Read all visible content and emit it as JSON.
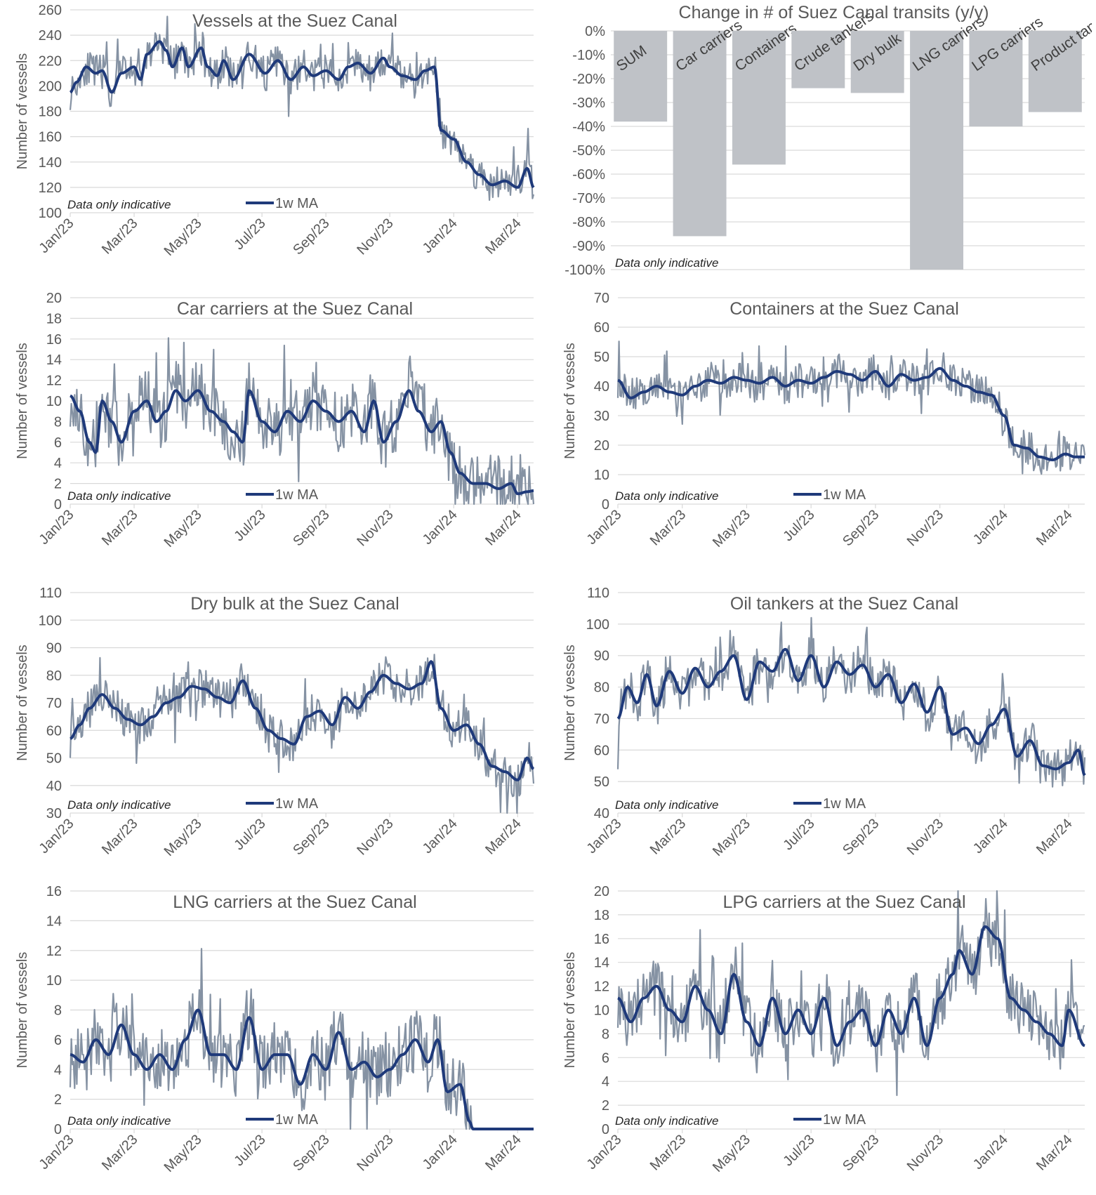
{
  "colors": {
    "daily": "#8592a3",
    "ma": "#1f3a7a",
    "bar": "#bfc2c7",
    "grid": "#d9d9d9",
    "text": "#595959"
  },
  "charts": [
    {
      "id": "vessels",
      "type": "line",
      "title": "Vessels at the Suez Canal",
      "ylabel": "Number of vessels",
      "note": "Data only indicative",
      "legend": "1w MA",
      "ylim": [
        100,
        260
      ],
      "ystep": 20,
      "xticks": [
        "Jan/23",
        "Mar/23",
        "May/23",
        "Jul/23",
        "Sep/23",
        "Nov/23",
        "Jan/24",
        "Mar/24"
      ],
      "ma_nodes": [
        [
          0,
          195
        ],
        [
          0.2,
          203
        ],
        [
          0.5,
          215
        ],
        [
          0.8,
          210
        ],
        [
          1.0,
          212
        ],
        [
          1.3,
          195
        ],
        [
          1.6,
          210
        ],
        [
          2.0,
          215
        ],
        [
          2.2,
          205
        ],
        [
          2.4,
          225
        ],
        [
          2.8,
          235
        ],
        [
          3.0,
          228
        ],
        [
          3.2,
          215
        ],
        [
          3.5,
          230
        ],
        [
          3.7,
          215
        ],
        [
          4.1,
          230
        ],
        [
          4.3,
          215
        ],
        [
          4.6,
          208
        ],
        [
          4.8,
          220
        ],
        [
          5.1,
          205
        ],
        [
          5.6,
          225
        ],
        [
          6.1,
          210
        ],
        [
          6.5,
          220
        ],
        [
          6.9,
          205
        ],
        [
          7.3,
          215
        ],
        [
          7.6,
          208
        ],
        [
          8.0,
          212
        ],
        [
          8.4,
          205
        ],
        [
          8.7,
          215
        ],
        [
          9.0,
          218
        ],
        [
          9.4,
          210
        ],
        [
          9.8,
          222
        ],
        [
          10.0,
          215
        ],
        [
          10.4,
          208
        ],
        [
          10.8,
          205
        ],
        [
          11.1,
          212
        ],
        [
          11.4,
          215
        ],
        [
          11.6,
          165
        ],
        [
          12.0,
          158
        ],
        [
          12.4,
          140
        ],
        [
          12.8,
          130
        ],
        [
          13.2,
          122
        ],
        [
          13.6,
          125
        ],
        [
          14.0,
          120
        ],
        [
          14.3,
          135
        ],
        [
          14.5,
          120
        ]
      ],
      "daily_amp": 14,
      "xmax": 14.5,
      "seed": 11
    },
    {
      "id": "car-carriers",
      "type": "line",
      "title": "Car carriers at the Suez Canal",
      "ylabel": "Number of vessels",
      "note": "Data only indicative",
      "legend": "1w MA",
      "ylim": [
        0,
        20
      ],
      "ystep": 2,
      "xticks": [
        "Jan/23",
        "Mar/23",
        "May/23",
        "Jul/23",
        "Sep/23",
        "Nov/23",
        "Jan/24",
        "Mar/24"
      ],
      "ma_nodes": [
        [
          0,
          10.5
        ],
        [
          0.3,
          9
        ],
        [
          0.6,
          6
        ],
        [
          0.8,
          5
        ],
        [
          1.0,
          10
        ],
        [
          1.3,
          8
        ],
        [
          1.6,
          6
        ],
        [
          2.0,
          9
        ],
        [
          2.4,
          10
        ],
        [
          2.7,
          8
        ],
        [
          3.0,
          9
        ],
        [
          3.3,
          11
        ],
        [
          3.6,
          10
        ],
        [
          4.0,
          11
        ],
        [
          4.4,
          9
        ],
        [
          4.8,
          8
        ],
        [
          5.1,
          7
        ],
        [
          5.4,
          6
        ],
        [
          5.6,
          11
        ],
        [
          6.0,
          8
        ],
        [
          6.4,
          7
        ],
        [
          6.8,
          9
        ],
        [
          7.2,
          8
        ],
        [
          7.6,
          10
        ],
        [
          8.0,
          9
        ],
        [
          8.4,
          8
        ],
        [
          8.8,
          9
        ],
        [
          9.2,
          7
        ],
        [
          9.5,
          10
        ],
        [
          9.8,
          6
        ],
        [
          10.2,
          8
        ],
        [
          10.6,
          11
        ],
        [
          10.9,
          9
        ],
        [
          11.3,
          7
        ],
        [
          11.6,
          8
        ],
        [
          11.9,
          5
        ],
        [
          12.2,
          3
        ],
        [
          12.6,
          2
        ],
        [
          13.0,
          2
        ],
        [
          13.4,
          1.5
        ],
        [
          13.8,
          2
        ],
        [
          14.0,
          1
        ],
        [
          14.3,
          1.2
        ],
        [
          14.5,
          1.3
        ]
      ],
      "daily_amp": 3,
      "xmax": 14.5,
      "seed": 23
    },
    {
      "id": "containers",
      "type": "line",
      "title": "Containers at the Suez Canal",
      "ylabel": "Number of vessels",
      "note": "Data only indicative",
      "legend": "1w MA",
      "ylim": [
        0,
        70
      ],
      "ystep": 10,
      "xticks": [
        "Jan/23",
        "Mar/23",
        "May/23",
        "Jul/23",
        "Sep/23",
        "Nov/23",
        "Jan/24",
        "Mar/24"
      ],
      "ma_nodes": [
        [
          0,
          42
        ],
        [
          0.4,
          36
        ],
        [
          0.8,
          38
        ],
        [
          1.2,
          40
        ],
        [
          1.6,
          38
        ],
        [
          2.0,
          37
        ],
        [
          2.4,
          40
        ],
        [
          2.8,
          42
        ],
        [
          3.2,
          41
        ],
        [
          3.6,
          43
        ],
        [
          4.0,
          42
        ],
        [
          4.4,
          41
        ],
        [
          4.8,
          43
        ],
        [
          5.2,
          40
        ],
        [
          5.6,
          42
        ],
        [
          6.0,
          41
        ],
        [
          6.4,
          43
        ],
        [
          6.8,
          45
        ],
        [
          7.2,
          44
        ],
        [
          7.6,
          42
        ],
        [
          8.0,
          45
        ],
        [
          8.4,
          40
        ],
        [
          8.8,
          44
        ],
        [
          9.2,
          42
        ],
        [
          9.6,
          43
        ],
        [
          10.0,
          46
        ],
        [
          10.4,
          42
        ],
        [
          10.8,
          40
        ],
        [
          11.2,
          38
        ],
        [
          11.6,
          37
        ],
        [
          12.0,
          30
        ],
        [
          12.3,
          20
        ],
        [
          12.7,
          19
        ],
        [
          13.1,
          16
        ],
        [
          13.5,
          15
        ],
        [
          13.9,
          17
        ],
        [
          14.2,
          16
        ],
        [
          14.5,
          16
        ]
      ],
      "daily_amp": 6,
      "xmax": 14.5,
      "seed": 37
    },
    {
      "id": "dry-bulk",
      "type": "line",
      "title": "Dry bulk at the Suez Canal",
      "ylabel": "Number of vessels",
      "note": "Data only indicative",
      "legend": "1w MA",
      "ylim": [
        30,
        110
      ],
      "ystep": 10,
      "xticks": [
        "Jan/23",
        "Mar/23",
        "May/23",
        "Jul/23",
        "Sep/23",
        "Nov/23",
        "Jan/24",
        "Mar/24"
      ],
      "ma_nodes": [
        [
          0,
          57
        ],
        [
          0.3,
          62
        ],
        [
          0.6,
          68
        ],
        [
          1.0,
          73
        ],
        [
          1.4,
          68
        ],
        [
          1.8,
          64
        ],
        [
          2.2,
          62
        ],
        [
          2.6,
          65
        ],
        [
          3.0,
          70
        ],
        [
          3.4,
          72
        ],
        [
          3.8,
          76
        ],
        [
          4.2,
          75
        ],
        [
          4.6,
          72
        ],
        [
          5.0,
          70
        ],
        [
          5.4,
          78
        ],
        [
          5.8,
          68
        ],
        [
          6.2,
          60
        ],
        [
          6.6,
          57
        ],
        [
          7.0,
          55
        ],
        [
          7.4,
          65
        ],
        [
          7.8,
          67
        ],
        [
          8.2,
          62
        ],
        [
          8.6,
          72
        ],
        [
          9.0,
          68
        ],
        [
          9.4,
          74
        ],
        [
          9.8,
          80
        ],
        [
          10.2,
          77
        ],
        [
          10.6,
          75
        ],
        [
          11.0,
          77
        ],
        [
          11.3,
          85
        ],
        [
          11.6,
          68
        ],
        [
          12.0,
          60
        ],
        [
          12.4,
          62
        ],
        [
          12.8,
          55
        ],
        [
          13.2,
          47
        ],
        [
          13.6,
          45
        ],
        [
          14.0,
          42
        ],
        [
          14.3,
          50
        ],
        [
          14.5,
          46
        ]
      ],
      "daily_amp": 7,
      "xmax": 14.5,
      "seed": 41
    },
    {
      "id": "oil-tankers",
      "type": "line",
      "title": "Oil tankers at the Suez Canal",
      "ylabel": "Number of vessels",
      "note": "Data only indicative",
      "legend": "1w MA",
      "ylim": [
        40,
        110
      ],
      "ystep": 10,
      "xticks": [
        "Jan/23",
        "Mar/23",
        "May/23",
        "Jul/23",
        "Sep/23",
        "Nov/23",
        "Jan/24",
        "Mar/24"
      ],
      "ma_nodes": [
        [
          0,
          70
        ],
        [
          0.3,
          80
        ],
        [
          0.6,
          75
        ],
        [
          0.9,
          84
        ],
        [
          1.2,
          74
        ],
        [
          1.6,
          85
        ],
        [
          2.0,
          78
        ],
        [
          2.4,
          86
        ],
        [
          2.8,
          80
        ],
        [
          3.2,
          85
        ],
        [
          3.6,
          90
        ],
        [
          4.0,
          76
        ],
        [
          4.4,
          88
        ],
        [
          4.8,
          85
        ],
        [
          5.2,
          92
        ],
        [
          5.6,
          82
        ],
        [
          6.0,
          90
        ],
        [
          6.4,
          80
        ],
        [
          6.8,
          88
        ],
        [
          7.2,
          84
        ],
        [
          7.6,
          87
        ],
        [
          8.0,
          80
        ],
        [
          8.4,
          84
        ],
        [
          8.8,
          75
        ],
        [
          9.2,
          81
        ],
        [
          9.6,
          72
        ],
        [
          10.0,
          80
        ],
        [
          10.4,
          65
        ],
        [
          10.8,
          67
        ],
        [
          11.2,
          62
        ],
        [
          11.6,
          68
        ],
        [
          12.0,
          73
        ],
        [
          12.4,
          58
        ],
        [
          12.8,
          63
        ],
        [
          13.2,
          55
        ],
        [
          13.6,
          54
        ],
        [
          14.0,
          56
        ],
        [
          14.3,
          60
        ],
        [
          14.5,
          52
        ]
      ],
      "daily_amp": 7,
      "xmax": 14.5,
      "seed": 53
    },
    {
      "id": "lng-carriers",
      "type": "line",
      "title": "LNG carriers at the Suez Canal",
      "ylabel": "Number of vessels",
      "note": "Data only indicative",
      "legend": "1w MA",
      "ylim": [
        0,
        16
      ],
      "ystep": 2,
      "xticks": [
        "Jan/23",
        "Mar/23",
        "May/23",
        "Jul/23",
        "Sep/23",
        "Nov/23",
        "Jan/24",
        "Mar/24"
      ],
      "ma_nodes": [
        [
          0,
          5
        ],
        [
          0.4,
          4.5
        ],
        [
          0.8,
          6
        ],
        [
          1.2,
          5
        ],
        [
          1.6,
          7
        ],
        [
          2.0,
          5
        ],
        [
          2.4,
          4
        ],
        [
          2.8,
          5
        ],
        [
          3.2,
          4
        ],
        [
          3.6,
          6
        ],
        [
          4.0,
          8
        ],
        [
          4.4,
          5
        ],
        [
          4.8,
          5
        ],
        [
          5.2,
          4
        ],
        [
          5.6,
          7.5
        ],
        [
          6.0,
          4
        ],
        [
          6.4,
          5
        ],
        [
          6.8,
          5
        ],
        [
          7.2,
          3
        ],
        [
          7.6,
          5
        ],
        [
          8.0,
          4
        ],
        [
          8.4,
          6.5
        ],
        [
          8.8,
          4
        ],
        [
          9.2,
          4.5
        ],
        [
          9.6,
          3.5
        ],
        [
          10.0,
          4
        ],
        [
          10.4,
          5
        ],
        [
          10.8,
          6
        ],
        [
          11.2,
          4.5
        ],
        [
          11.5,
          6
        ],
        [
          11.8,
          2.5
        ],
        [
          12.2,
          3
        ],
        [
          12.5,
          0.5
        ],
        [
          12.6,
          0
        ],
        [
          13.5,
          0
        ],
        [
          14.5,
          0
        ]
      ],
      "daily_amp": 2.2,
      "zero_after": 12.6,
      "xmax": 14.5,
      "seed": 61
    },
    {
      "id": "lpg-carriers",
      "type": "line",
      "title": "LPG carriers at the Suez Canal",
      "ylabel": "Number of vessels",
      "note": "Data only indicative",
      "legend": "1w MA",
      "ylim": [
        0,
        20
      ],
      "ystep": 2,
      "xticks": [
        "Jan/23",
        "Mar/23",
        "May/23",
        "Jul/23",
        "Sep/23",
        "Nov/23",
        "Jan/24",
        "Mar/24"
      ],
      "ma_nodes": [
        [
          0,
          11
        ],
        [
          0.4,
          9
        ],
        [
          0.8,
          11
        ],
        [
          1.2,
          12
        ],
        [
          1.6,
          10
        ],
        [
          2.0,
          9
        ],
        [
          2.4,
          12
        ],
        [
          2.8,
          10
        ],
        [
          3.2,
          8
        ],
        [
          3.6,
          13
        ],
        [
          4.0,
          9
        ],
        [
          4.4,
          7
        ],
        [
          4.8,
          11
        ],
        [
          5.2,
          8
        ],
        [
          5.6,
          10
        ],
        [
          6.0,
          8
        ],
        [
          6.4,
          11
        ],
        [
          6.8,
          7
        ],
        [
          7.2,
          9
        ],
        [
          7.6,
          10
        ],
        [
          8.0,
          7
        ],
        [
          8.4,
          10
        ],
        [
          8.8,
          8
        ],
        [
          9.2,
          11
        ],
        [
          9.6,
          7
        ],
        [
          10.0,
          11
        ],
        [
          10.4,
          13
        ],
        [
          10.6,
          15
        ],
        [
          11.0,
          13
        ],
        [
          11.4,
          17
        ],
        [
          11.8,
          16
        ],
        [
          12.2,
          11
        ],
        [
          12.6,
          10
        ],
        [
          13.0,
          9
        ],
        [
          13.4,
          8
        ],
        [
          13.8,
          7
        ],
        [
          14.0,
          10
        ],
        [
          14.5,
          7
        ]
      ],
      "daily_amp": 2.5,
      "xmax": 14.5,
      "seed": 79
    }
  ],
  "bar_chart": {
    "type": "bar",
    "title": "Change in # of Suez Canal transits (y/y)",
    "note": "Data only indicative",
    "categories": [
      "SUM",
      "Car carriers",
      "Containers",
      "Crude tankers",
      "Dry bulk",
      "LNG carriers",
      "LPG carriers",
      "Product tankers"
    ],
    "values": [
      -38,
      -86,
      -56,
      -24,
      -26,
      -100,
      -40,
      -34
    ],
    "ylim": [
      -100,
      0
    ],
    "ystep": 10,
    "yticks": [
      "0%",
      "-10%",
      "-20%",
      "-30%",
      "-40%",
      "-50%",
      "-60%",
      "-70%",
      "-80%",
      "-90%",
      "-100%"
    ]
  }
}
